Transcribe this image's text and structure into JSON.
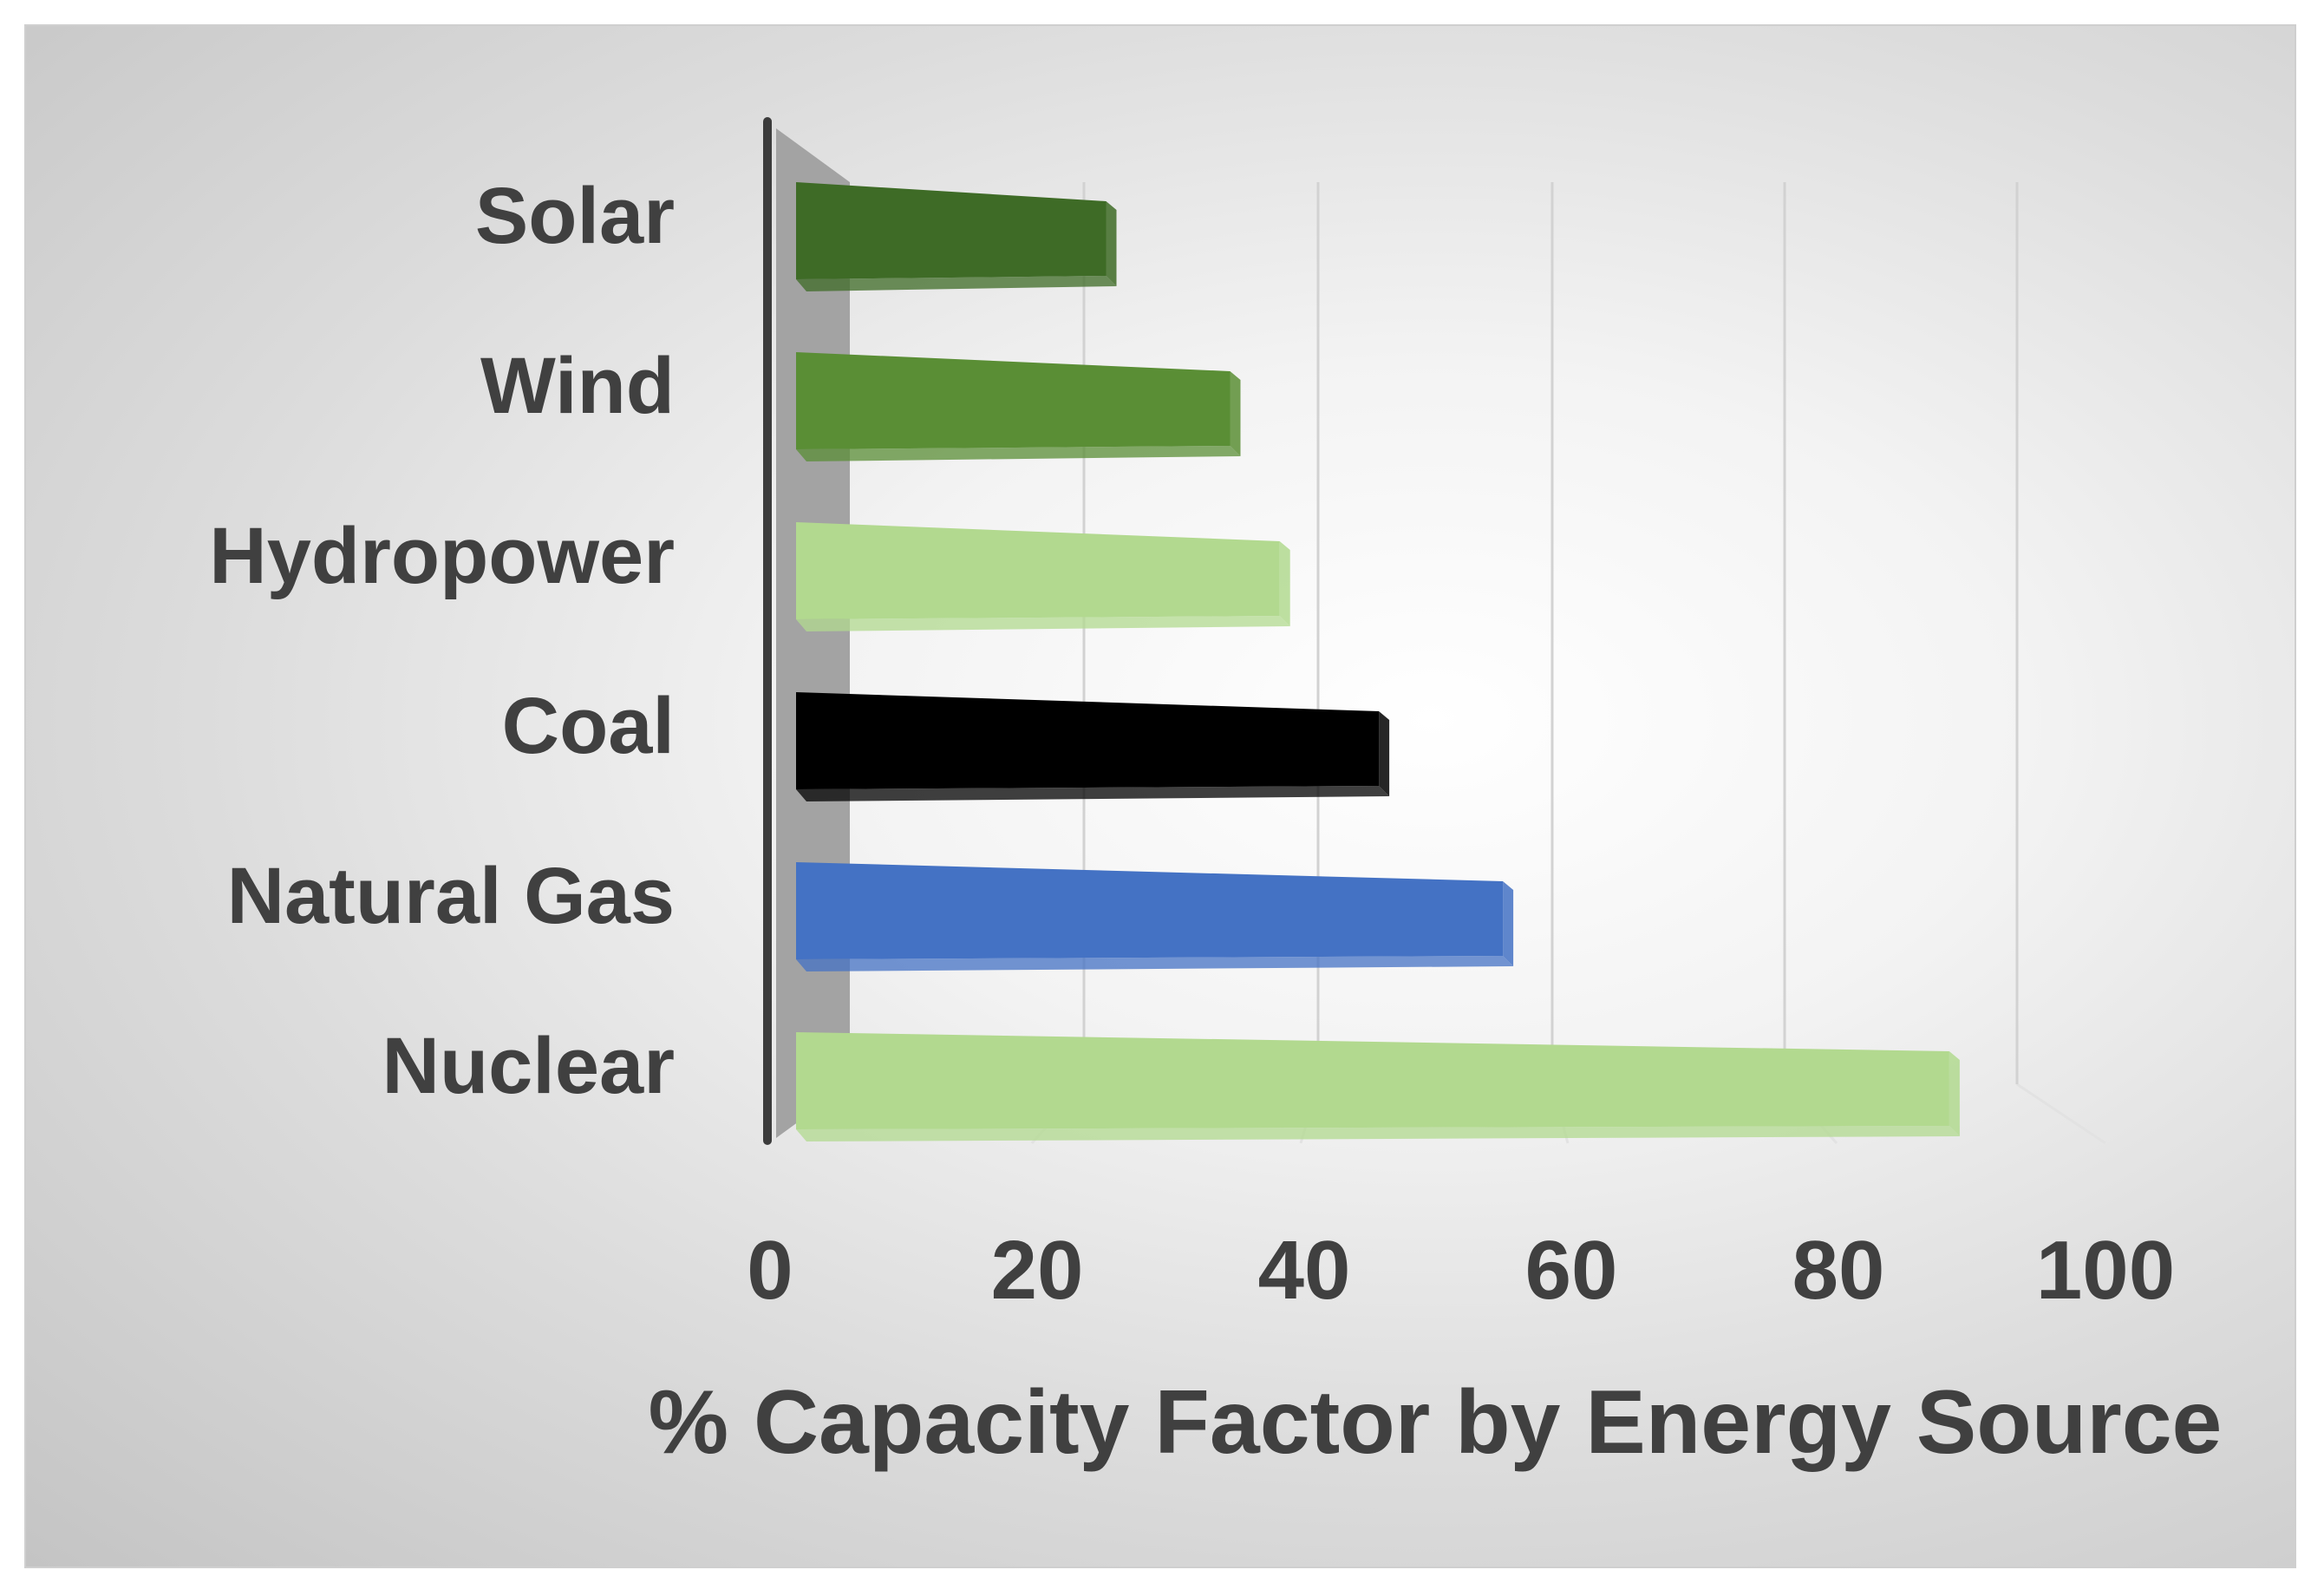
{
  "chart_data": {
    "type": "bar",
    "orientation": "horizontal",
    "title": "",
    "xlabel": "% Capacity Factor by Energy Source",
    "ylabel": "",
    "categories": [
      "Solar",
      "Wind",
      "Hydropower",
      "Coal",
      "Natural Gas",
      "Nuclear"
    ],
    "values": [
      25,
      35,
      39,
      47,
      57,
      93
    ],
    "colors": [
      "#3e6b26",
      "#5a8e35",
      "#b2d98f",
      "#000000",
      "#4472c4",
      "#b2d98f"
    ],
    "xlim": [
      0,
      100
    ],
    "xticks": [
      "0",
      "20",
      "40",
      "60",
      "80",
      "100"
    ],
    "grid": true,
    "legend": "none"
  }
}
